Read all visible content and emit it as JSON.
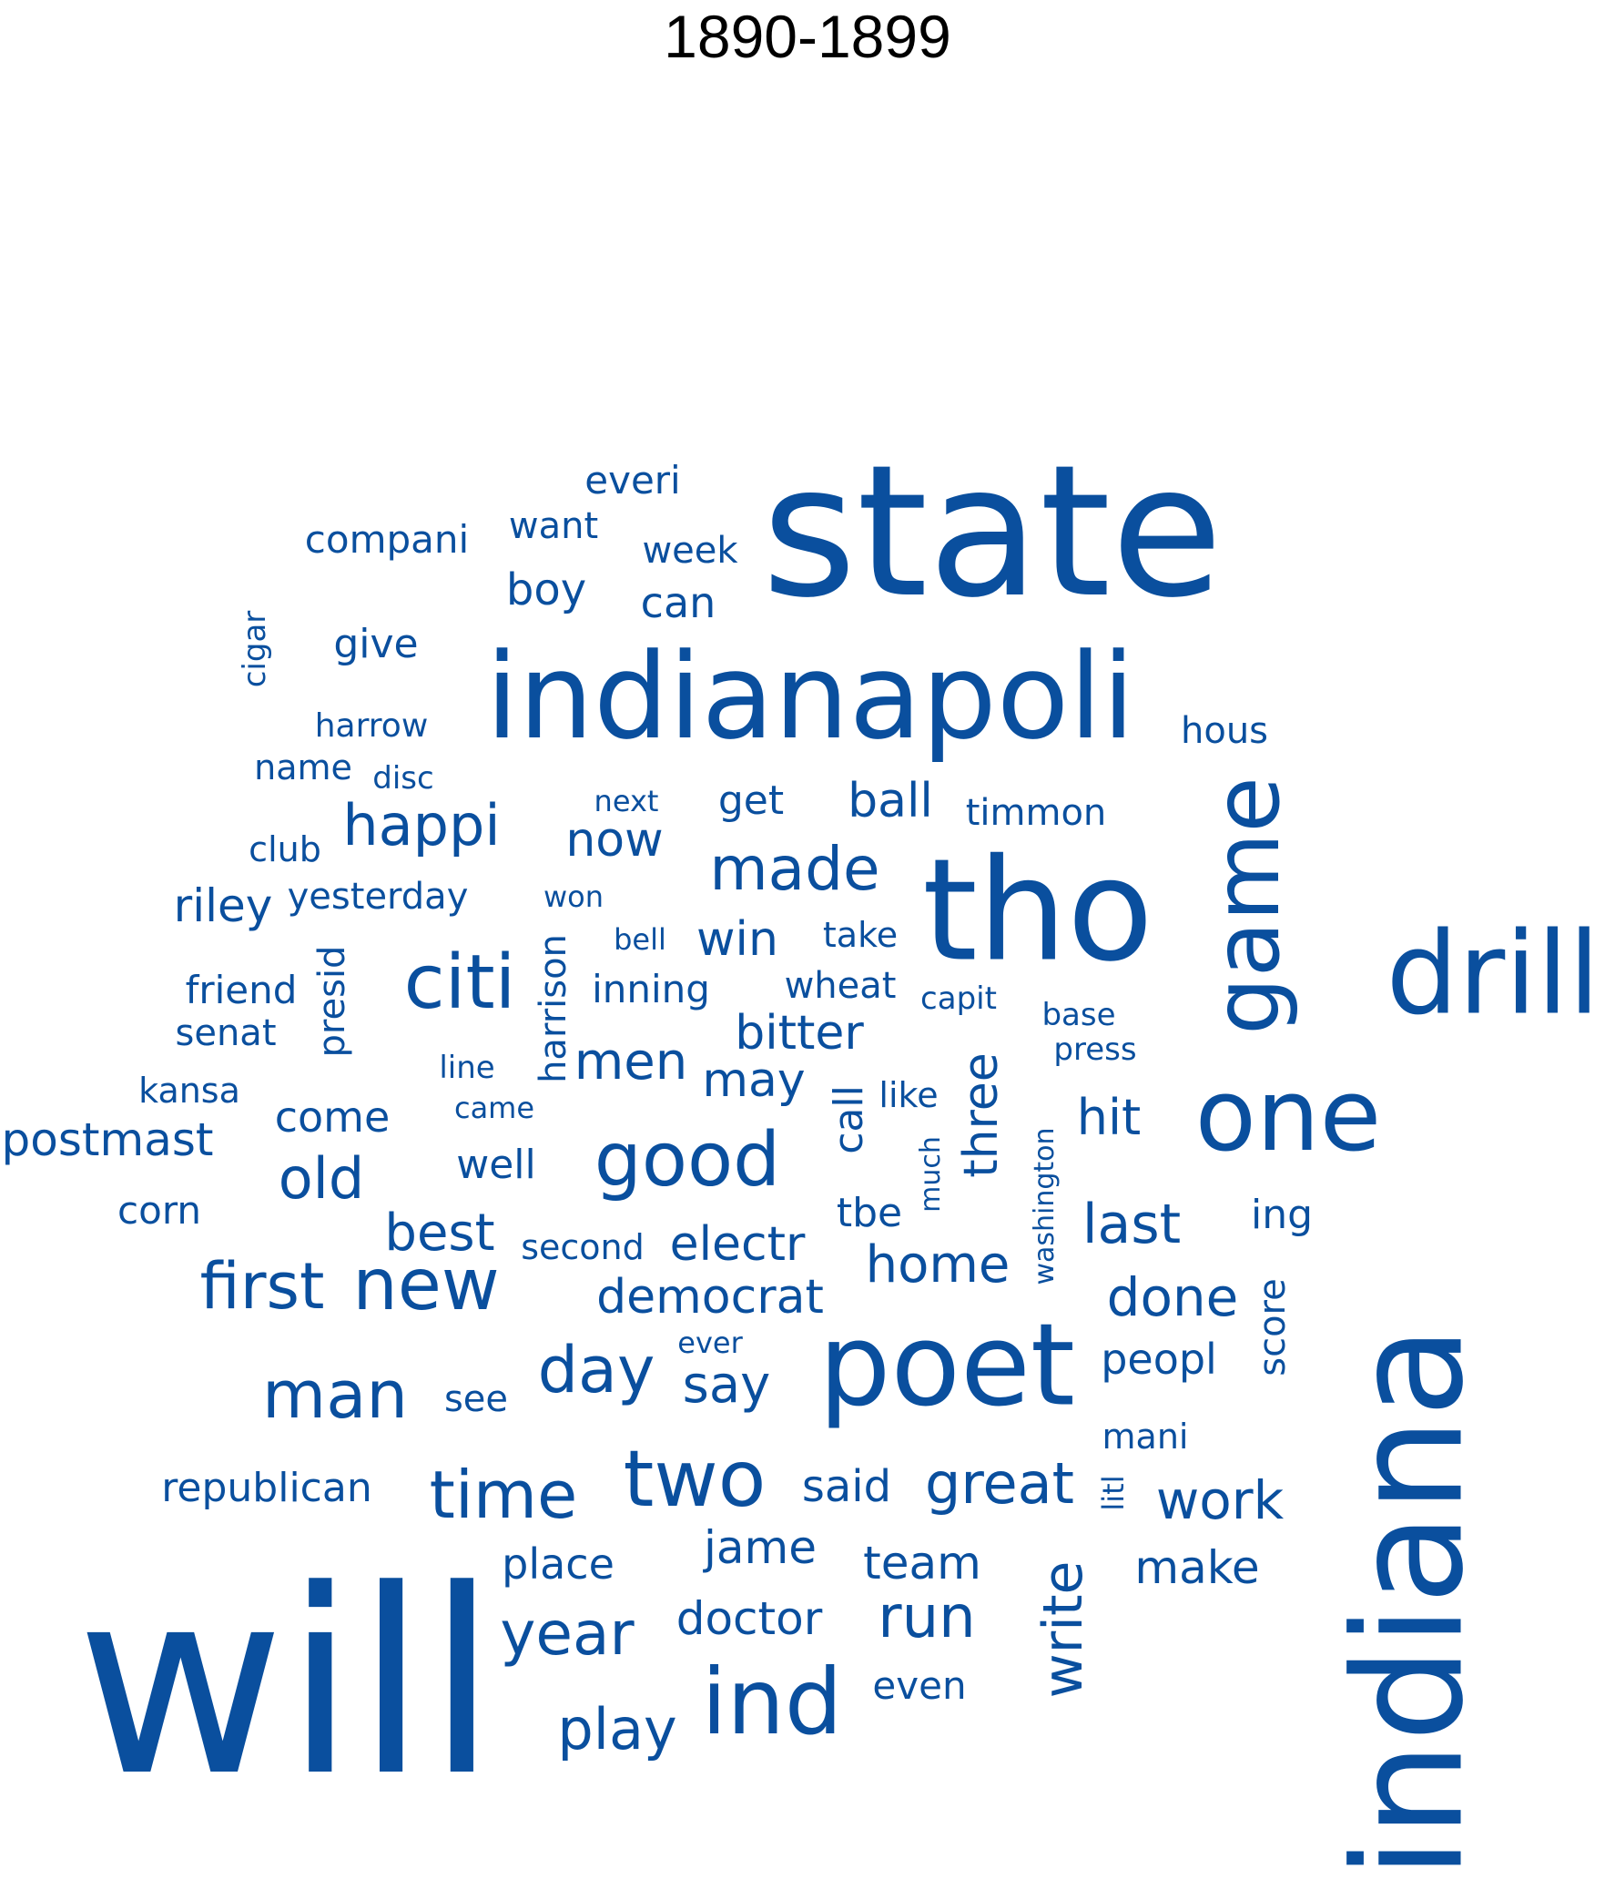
{
  "title": "1890-1899",
  "word_color": "#0a4f9e",
  "words": [
    {
      "text": "will"
    },
    {
      "text": "state"
    },
    {
      "text": "indiana"
    },
    {
      "text": "indianapoli"
    },
    {
      "text": "tho"
    },
    {
      "text": "poet"
    },
    {
      "text": "drill"
    },
    {
      "text": "one"
    },
    {
      "text": "game"
    },
    {
      "text": "ind"
    },
    {
      "text": "two"
    },
    {
      "text": "good"
    },
    {
      "text": "citi"
    },
    {
      "text": "new"
    },
    {
      "text": "man"
    },
    {
      "text": "time"
    },
    {
      "text": "first"
    },
    {
      "text": "day"
    },
    {
      "text": "made"
    },
    {
      "text": "year"
    },
    {
      "text": "run"
    },
    {
      "text": "play"
    },
    {
      "text": "great"
    },
    {
      "text": "happi"
    },
    {
      "text": "old"
    },
    {
      "text": "write"
    },
    {
      "text": "last"
    },
    {
      "text": "work"
    },
    {
      "text": "done"
    },
    {
      "text": "home"
    },
    {
      "text": "men"
    },
    {
      "text": "best"
    },
    {
      "text": "say"
    },
    {
      "text": "democrat"
    },
    {
      "text": "electr"
    },
    {
      "text": "may"
    },
    {
      "text": "bitter"
    },
    {
      "text": "doctor"
    },
    {
      "text": "now"
    },
    {
      "text": "team"
    },
    {
      "text": "make"
    },
    {
      "text": "jame"
    },
    {
      "text": "riley"
    },
    {
      "text": "hit"
    },
    {
      "text": "win"
    },
    {
      "text": "three"
    },
    {
      "text": "ball"
    },
    {
      "text": "postmast"
    },
    {
      "text": "said"
    },
    {
      "text": "place"
    },
    {
      "text": "come"
    },
    {
      "text": "peopl"
    },
    {
      "text": "boy"
    },
    {
      "text": "compani"
    },
    {
      "text": "can"
    },
    {
      "text": "give"
    },
    {
      "text": "get"
    },
    {
      "text": "tbe"
    },
    {
      "text": "republican"
    },
    {
      "text": "well"
    },
    {
      "text": "inning"
    },
    {
      "text": "week"
    },
    {
      "text": "everi"
    },
    {
      "text": "yesterday"
    },
    {
      "text": "timmon"
    },
    {
      "text": "hous"
    },
    {
      "text": "wheat"
    },
    {
      "text": "friend"
    },
    {
      "text": "want"
    },
    {
      "text": "even"
    },
    {
      "text": "call"
    },
    {
      "text": "see"
    },
    {
      "text": "senat"
    },
    {
      "text": "ing"
    },
    {
      "text": "corn"
    },
    {
      "text": "take"
    },
    {
      "text": "mani"
    },
    {
      "text": "second"
    },
    {
      "text": "name"
    },
    {
      "text": "club"
    },
    {
      "text": "kansa"
    },
    {
      "text": "like"
    },
    {
      "text": "harrison"
    },
    {
      "text": "presid"
    },
    {
      "text": "score"
    },
    {
      "text": "harrow"
    },
    {
      "text": "capit"
    },
    {
      "text": "base"
    },
    {
      "text": "press"
    },
    {
      "text": "cigar"
    },
    {
      "text": "line"
    },
    {
      "text": "litl"
    },
    {
      "text": "won"
    },
    {
      "text": "bell"
    },
    {
      "text": "next"
    },
    {
      "text": "disc"
    },
    {
      "text": "came"
    },
    {
      "text": "ever"
    },
    {
      "text": "much"
    },
    {
      "text": "washington"
    }
  ]
}
